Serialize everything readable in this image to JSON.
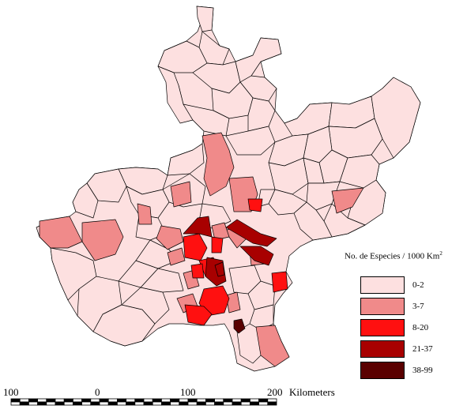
{
  "legend": {
    "title_main": "No. de Especies / 1000 Km",
    "title_sup": "2",
    "classes": [
      {
        "label": "0-2",
        "color": "#fde0e0"
      },
      {
        "label": "3-7",
        "color": "#f08a8a"
      },
      {
        "label": "8-20",
        "color": "#ff1010"
      },
      {
        "label": "21-37",
        "color": "#a80000"
      },
      {
        "label": "38-99",
        "color": "#5a0000"
      }
    ]
  },
  "scale_bar": {
    "labels": [
      "100",
      "0",
      "100",
      "200"
    ],
    "unit": "Kilometers"
  },
  "colors": {
    "border": "#000000",
    "background": "#ffffff"
  }
}
